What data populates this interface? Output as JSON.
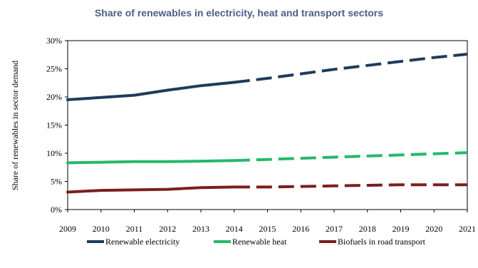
{
  "chart_data": {
    "type": "line",
    "title": "Share of renewables in electricity, heat and transport sectors",
    "xlabel": "",
    "ylabel": "Share of renewables in sector demand",
    "categories": [
      "2009",
      "2010",
      "2011",
      "2012",
      "2013",
      "2014",
      "2015",
      "2016",
      "2017",
      "2018",
      "2019",
      "2020",
      "2021"
    ],
    "yticks": [
      "0%",
      "5%",
      "10%",
      "15%",
      "20%",
      "25%",
      "30%"
    ],
    "ylim": [
      0,
      30
    ],
    "grid": false,
    "legend_position": "bottom",
    "series": [
      {
        "name": "Renewable electricity",
        "color": "#1f3b5c",
        "values": [
          19.5,
          19.9,
          20.3,
          21.2,
          22.0,
          22.6,
          23.3,
          24.1,
          24.9,
          25.6,
          26.3,
          27.0,
          27.6
        ]
      },
      {
        "name": "Renewable heat",
        "color": "#27b86a",
        "values": [
          8.3,
          8.4,
          8.5,
          8.5,
          8.6,
          8.7,
          8.9,
          9.1,
          9.3,
          9.5,
          9.7,
          9.9,
          10.1
        ]
      },
      {
        "name": "Biofuels in road transport",
        "color": "#7a1f1f",
        "values": [
          3.1,
          3.4,
          3.5,
          3.6,
          3.9,
          4.0,
          4.0,
          4.1,
          4.2,
          4.3,
          4.4,
          4.4,
          4.4
        ]
      }
    ],
    "actual_until": "2014",
    "projection_from": "2014"
  },
  "colors": {
    "title": "#4a5f86"
  }
}
